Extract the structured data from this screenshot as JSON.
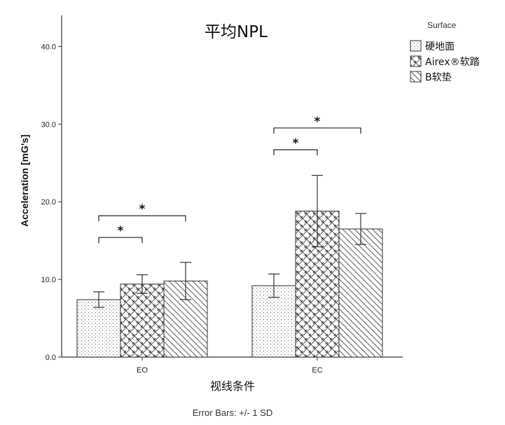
{
  "chart_data": {
    "type": "bar",
    "title": "平均NPL",
    "xlabel": "视线条件",
    "ylabel": "Acceleration [mG's]",
    "footnote": "Error Bars: +/- 1 SD",
    "ylim": [
      0,
      44
    ],
    "yticks": [
      0,
      10,
      20,
      30,
      40
    ],
    "ytick_labels": [
      "0.0",
      "10.0",
      "20.0",
      "30.0",
      "40.0"
    ],
    "categories": [
      "EO",
      "EC"
    ],
    "legend": {
      "title": "Surface",
      "position": "top-right"
    },
    "series": [
      {
        "name": "硬地面",
        "pattern": "dots",
        "values": [
          7.4,
          9.2
        ],
        "error": [
          1.0,
          1.5
        ]
      },
      {
        "name": "Airex®软踏",
        "pattern": "crosses",
        "values": [
          9.4,
          18.8
        ],
        "error": [
          1.2,
          4.6
        ]
      },
      {
        "name": "B软垫",
        "pattern": "hatch",
        "values": [
          9.8,
          16.5
        ],
        "error": [
          2.4,
          2.0
        ]
      }
    ],
    "significance": [
      {
        "category": "EO",
        "from": 0,
        "to": 1,
        "y": 15.4,
        "label": "*"
      },
      {
        "category": "EO",
        "from": 0,
        "to": 2,
        "y": 18.2,
        "label": "*"
      },
      {
        "category": "EC",
        "from": 0,
        "to": 1,
        "y": 26.7,
        "label": "*"
      },
      {
        "category": "EC",
        "from": 0,
        "to": 2,
        "y": 29.5,
        "label": "*"
      }
    ],
    "colors": {
      "bar_fill": "#ffffff",
      "pattern": "#555555",
      "axis": "#333333",
      "bracket": "#222222"
    },
    "grid": false
  }
}
